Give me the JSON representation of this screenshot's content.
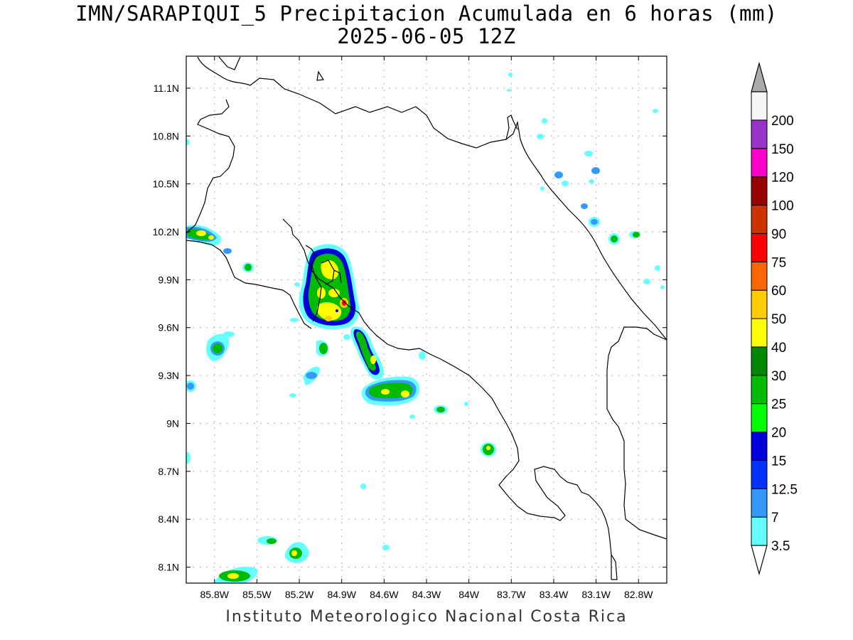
{
  "title": {
    "line1": "IMN/SARAPIQUI_5 Precipitacion Acumulada en 6 horas (mm)",
    "line2": "2025-06-05 12Z"
  },
  "footer": "Instituto Meteorologico Nacional Costa Rica",
  "map": {
    "lon_range": [
      -86.0,
      -82.6
    ],
    "lat_range": [
      8.0,
      11.3
    ],
    "lat_ticks": [
      "11.1N",
      "10.8N",
      "10.5N",
      "10.2N",
      "9.9N",
      "9.6N",
      "9.3N",
      "9N",
      "8.7N",
      "8.4N",
      "8.1N"
    ],
    "lon_ticks": [
      "85.8W",
      "85.5W",
      "85.2W",
      "84.9W",
      "84.6W",
      "84.3W",
      "84W",
      "83.7W",
      "83.4W",
      "83.1W",
      "82.8W"
    ],
    "grid": "dotted"
  },
  "colorbar": {
    "labels": [
      "3.5",
      "7",
      "12.5",
      "15",
      "20",
      "25",
      "30",
      "40",
      "50",
      "60",
      "75",
      "90",
      "100",
      "120",
      "150",
      "200"
    ],
    "colors": [
      "#66ffff",
      "#3399ff",
      "#0033ff",
      "#0000dd",
      "#00ff00",
      "#00bb00",
      "#008800",
      "#ffff00",
      "#ffcc00",
      "#ff6600",
      "#ff0000",
      "#cc3300",
      "#990000",
      "#ff00cc",
      "#9933cc",
      "#f5f5f5",
      "#aaaaaa"
    ]
  }
}
